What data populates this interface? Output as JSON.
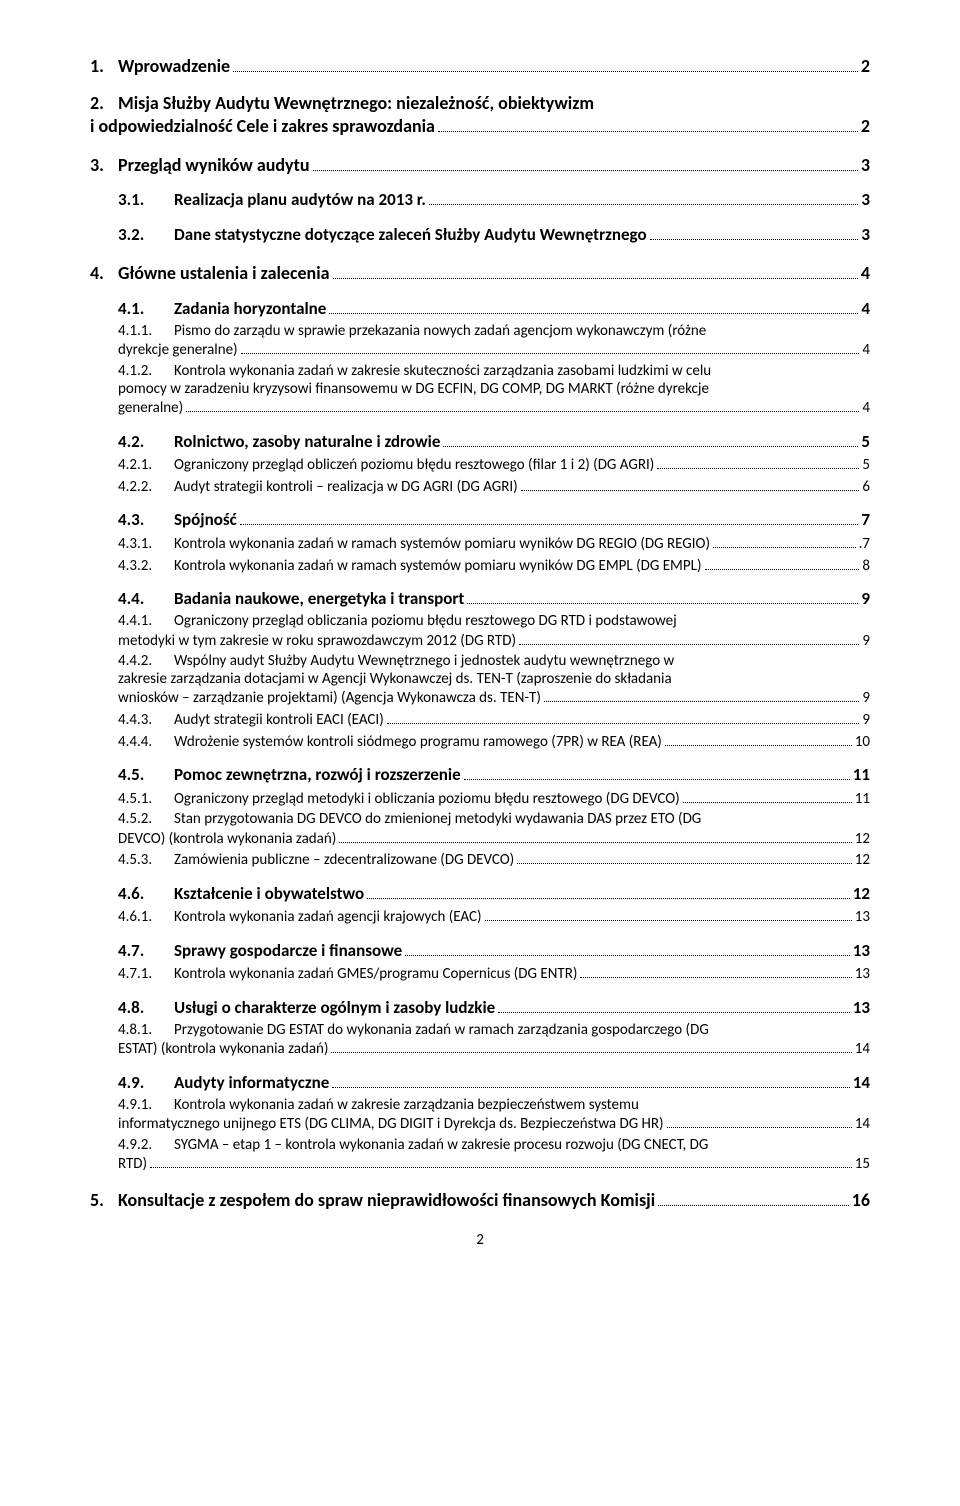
{
  "colors": {
    "text": "#000000",
    "bg": "#ffffff",
    "dots": "#000000"
  },
  "fonts": {
    "body": "Calibri, Arial, sans-serif",
    "lvl1_size": 18,
    "lvl2_size": 17,
    "lvl3_size": 15
  },
  "footer_page": "2",
  "items": [
    {
      "level": 1,
      "num": "1.",
      "title": "Wprowadzenie",
      "page": "2"
    },
    {
      "level": 1,
      "num": "2.",
      "title_a": "Misja Służby Audytu Wewnętrznego: niezależność, obiektywizm",
      "title_b": "i odpowiedzialność Cele i zakres sprawozdania",
      "page": "2"
    },
    {
      "level": 1,
      "num": "3.",
      "title": "Przegląd wyników audytu",
      "page": "3"
    },
    {
      "level": 2,
      "num": "3.1.",
      "title": "Realizacja planu audytów na 2013 r.",
      "page": "3"
    },
    {
      "level": 2,
      "num": "3.2.",
      "title": "Dane statystyczne dotyczące zaleceń Służby Audytu Wewnętrznego",
      "page": "3"
    },
    {
      "level": 1,
      "num": "4.",
      "title": "Główne ustalenia i zalecenia",
      "page": "4"
    },
    {
      "level": 2,
      "num": "4.1.",
      "title": "Zadania horyzontalne",
      "page": "4"
    },
    {
      "level": 3,
      "num": "4.1.1.",
      "title_a": "Pismo do zarządu w sprawie przekazania nowych zadań agencjom wykonawczym (różne",
      "title_b": "dyrekcje generalne)",
      "page": "4"
    },
    {
      "level": 3,
      "num": "4.1.2.",
      "title_a": "Kontrola wykonania zadań w zakresie skuteczności zarządzania zasobami ludzkimi w celu",
      "title_b": "pomocy w zaradzeniu kryzysowi finansowemu w DG ECFIN, DG COMP, DG MARKT (różne dyrekcje",
      "title_c": "generalne)",
      "page": "4"
    },
    {
      "level": 2,
      "num": "4.2.",
      "title": "Rolnictwo, zasoby naturalne i zdrowie",
      "page": "5"
    },
    {
      "level": 3,
      "num": "4.2.1.",
      "title": "Ograniczony przegląd obliczeń poziomu błędu resztowego (filar 1 i 2) (DG AGRI)",
      "page": "5"
    },
    {
      "level": 3,
      "num": "4.2.2.",
      "title": "Audyt strategii kontroli – realizacja w DG AGRI (DG AGRI)",
      "page": "6"
    },
    {
      "level": 2,
      "num": "4.3.",
      "title": "Spójność",
      "page": "7"
    },
    {
      "level": 3,
      "num": "4.3.1.",
      "title": "Kontrola wykonania zadań w ramach systemów pomiaru wyników DG REGIO (DG REGIO)",
      "page": ".7"
    },
    {
      "level": 3,
      "num": "4.3.2.",
      "title": "Kontrola wykonania zadań w ramach systemów pomiaru wyników DG EMPL (DG EMPL)",
      "page": "8"
    },
    {
      "level": 2,
      "num": "4.4.",
      "title": "Badania naukowe, energetyka i transport",
      "page": "9"
    },
    {
      "level": 3,
      "num": "4.4.1.",
      "title_a": "Ograniczony przegląd obliczania poziomu błędu resztowego DG RTD i podstawowej",
      "title_b": "metodyki w tym zakresie w roku sprawozdawczym 2012 (DG RTD)",
      "page": "9"
    },
    {
      "level": 3,
      "num": "4.4.2.",
      "title_a": "Wspólny audyt Służby Audytu Wewnętrznego i jednostek audytu wewnętrznego w",
      "title_b": "zakresie zarządzania dotacjami w Agencji Wykonawczej ds. TEN-T (zaproszenie do składania",
      "title_c": "wniosków – zarządzanie projektami) (Agencja Wykonawcza ds. TEN-T)",
      "page": "9"
    },
    {
      "level": 3,
      "num": "4.4.3.",
      "title": "Audyt strategii kontroli EACI (EACI)",
      "page": "9"
    },
    {
      "level": 3,
      "num": "4.4.4.",
      "title": "Wdrożenie systemów kontroli siódmego programu ramowego (7PR) w REA (REA)",
      "page": "10"
    },
    {
      "level": 2,
      "num": "4.5.",
      "title": "Pomoc zewnętrzna, rozwój i rozszerzenie",
      "page": "11"
    },
    {
      "level": 3,
      "num": "4.5.1.",
      "title": "Ograniczony przegląd metodyki i obliczania poziomu błędu resztowego (DG DEVCO)",
      "page": "11"
    },
    {
      "level": 3,
      "num": "4.5.2.",
      "title_a": "Stan przygotowania DG DEVCO do zmienionej metodyki wydawania DAS przez ETO (DG",
      "title_b": "DEVCO) (kontrola wykonania zadań)",
      "page": "12"
    },
    {
      "level": 3,
      "num": "4.5.3.",
      "title": "Zamówienia publiczne – zdecentralizowane (DG DEVCO)",
      "page": "12"
    },
    {
      "level": 2,
      "num": "4.6.",
      "title": "Kształcenie i obywatelstwo",
      "page": "12"
    },
    {
      "level": 3,
      "num": "4.6.1.",
      "title": "Kontrola wykonania zadań agencji krajowych (EAC)",
      "page": "13"
    },
    {
      "level": 2,
      "num": "4.7.",
      "title": "Sprawy gospodarcze i finansowe",
      "page": "13"
    },
    {
      "level": 3,
      "num": "4.7.1.",
      "title": "Kontrola wykonania zadań GMES/programu Copernicus (DG ENTR)",
      "page": "13"
    },
    {
      "level": 2,
      "num": "4.8.",
      "title": "Usługi o charakterze ogólnym i zasoby ludzkie",
      "page": "13"
    },
    {
      "level": 3,
      "num": "4.8.1.",
      "title_a": "Przygotowanie DG ESTAT do wykonania zadań w ramach zarządzania gospodarczego (DG",
      "title_b": "ESTAT) (kontrola wykonania zadań)",
      "page": "14"
    },
    {
      "level": 2,
      "num": "4.9.",
      "title": "Audyty informatyczne",
      "page": "14"
    },
    {
      "level": 3,
      "num": "4.9.1.",
      "title_a": "Kontrola wykonania zadań w zakresie zarządzania bezpieczeństwem systemu",
      "title_b": "informatycznego unijnego ETS (DG CLIMA, DG DIGIT i Dyrekcja ds. Bezpieczeństwa DG HR)",
      "page": "14"
    },
    {
      "level": 3,
      "num": "4.9.2.",
      "title_a": "SYGMA – etap 1 – kontrola wykonania zadań w zakresie procesu rozwoju (DG CNECT, DG",
      "title_b": "RTD)",
      "page": "15"
    },
    {
      "level": 1,
      "num": "5.",
      "title": "Konsultacje z zespołem do spraw nieprawidłowości finansowych Komisji",
      "page": "16"
    }
  ]
}
